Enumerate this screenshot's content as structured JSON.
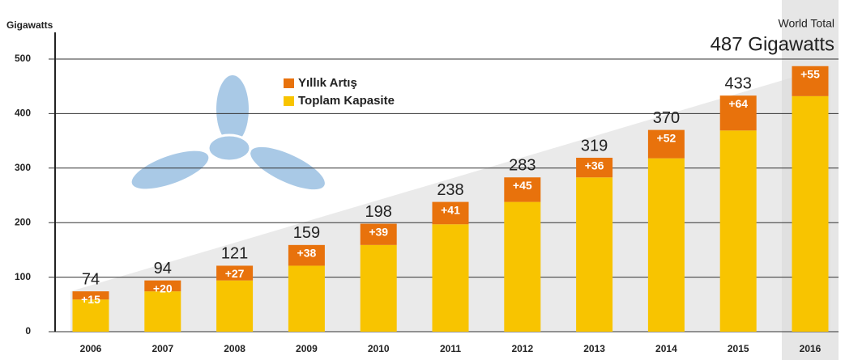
{
  "chart_data": {
    "type": "stacked-bar",
    "y_label": "Gigawatts",
    "annotation_title": "World Total",
    "annotation_value": "487 Gigawatts",
    "categories": [
      "2006",
      "2007",
      "2008",
      "2009",
      "2010",
      "2011",
      "2012",
      "2013",
      "2014",
      "2015",
      "2016"
    ],
    "series": [
      {
        "name": "Toplam Kapasite",
        "color": "#f8c400",
        "values": [
          59,
          74,
          94,
          121,
          159,
          197,
          238,
          283,
          318,
          369,
          432
        ]
      },
      {
        "name": "Yıllık Artış",
        "color": "#e8720c",
        "values": [
          15,
          20,
          27,
          38,
          39,
          41,
          45,
          36,
          52,
          64,
          55
        ],
        "value_labels": [
          "+15",
          "+20",
          "+27",
          "+38",
          "+39",
          "+41",
          "+45",
          "+36",
          "+52",
          "+64",
          "+55"
        ]
      }
    ],
    "totals": [
      74,
      94,
      121,
      159,
      198,
      238,
      283,
      319,
      370,
      433,
      null
    ],
    "ylim": [
      0,
      500
    ],
    "yticks": [
      0,
      100,
      200,
      300,
      400,
      500
    ],
    "grid": true
  }
}
